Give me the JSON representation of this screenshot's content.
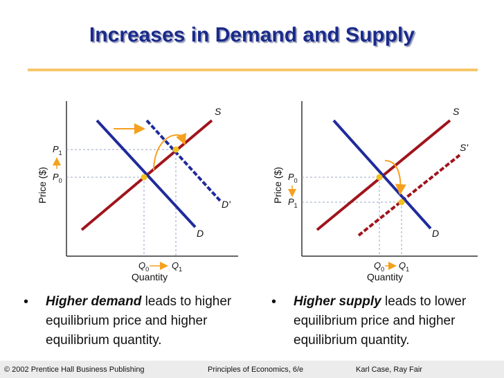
{
  "slide": {
    "title": "Increases in Demand and Supply"
  },
  "colors": {
    "title": "#1a2a8c",
    "rule": "#f6c76a",
    "demand": "#1f2a9c",
    "supply": "#a0141c",
    "arrow": "#f5a01e",
    "equilibrium": "#f4c020",
    "guide": "#9aa3c8"
  },
  "left_graph": {
    "y_axis_label": "Price ($)",
    "x_axis_label": "Quantity",
    "supply_label": "S",
    "demand_label": "D",
    "new_demand_label": "D'",
    "p_high": "P",
    "p_high_sub": "1",
    "p_low": "P",
    "p_low_sub": "0",
    "q0": "Q",
    "q0_sub": "0",
    "q1": "Q",
    "q1_sub": "1"
  },
  "right_graph": {
    "y_axis_label": "Price ($)",
    "x_axis_label": "Quantity",
    "supply_label": "S",
    "new_supply_label": "S'",
    "demand_label": "D",
    "p_high": "P",
    "p_high_sub": "0",
    "p_low": "P",
    "p_low_sub": "1",
    "q0": "Q",
    "q0_sub": "0",
    "q1": "Q",
    "q1_sub": "1"
  },
  "bullets": {
    "left_emphasis": "Higher demand",
    "left_rest": " leads to higher equilibrium price and higher equilibrium quantity.",
    "right_emphasis": "Higher supply",
    "right_rest": " leads to lower equilibrium price and higher equilibrium quantity."
  },
  "footer": {
    "publisher": "© 2002 Prentice Hall Business Publishing",
    "book": "Principles of Economics, 6/e",
    "authors": "Karl Case, Ray Fair"
  }
}
